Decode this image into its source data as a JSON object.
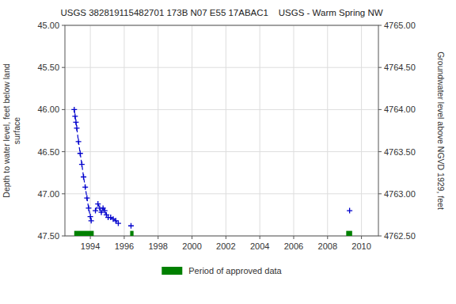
{
  "chart_data": {
    "type": "line",
    "title": "USGS 382819115482701 173B N07 E55 17ABAC1    USGS - Warm Spring NW",
    "ylabel": "Depth to water level, feet below land\nsurface",
    "y2label": "Groundwater level above NGVD 1929, feet",
    "xlim": [
      1992.5,
      2011.0
    ],
    "xticks": [
      1994,
      1996,
      1998,
      2000,
      2002,
      2004,
      2006,
      2008,
      2010
    ],
    "ylim": [
      47.5,
      45.0
    ],
    "yticks": [
      {
        "value": 45.0,
        "label": "45.00"
      },
      {
        "value": 45.5,
        "label": "45.50"
      },
      {
        "value": 46.0,
        "label": "46.00"
      },
      {
        "value": 46.5,
        "label": "46.50"
      },
      {
        "value": 47.0,
        "label": "47.00"
      },
      {
        "value": 47.5,
        "label": "47.50"
      }
    ],
    "y2lim": [
      4762.5,
      4765.0
    ],
    "y2ticks": [
      {
        "value": 4765.0,
        "label": "4765.00"
      },
      {
        "value": 4764.5,
        "label": "4764.50"
      },
      {
        "value": 4764.0,
        "label": "4764.00"
      },
      {
        "value": 4763.5,
        "label": "4763.50"
      },
      {
        "value": 4763.0,
        "label": "4763.00"
      },
      {
        "value": 4762.5,
        "label": "4762.50"
      }
    ],
    "grid": true,
    "legend": "below",
    "series": [
      {
        "color": "#0000cc",
        "marker": "plus",
        "line_style": "dashed",
        "x": [
          1993.05,
          1993.1,
          1993.15,
          1993.2,
          1993.3,
          1993.4,
          1993.5,
          1993.6,
          1993.7,
          1993.8,
          1993.9,
          1994.0,
          1994.05
        ],
        "values": [
          46.0,
          46.08,
          46.15,
          46.22,
          46.38,
          46.52,
          46.65,
          46.8,
          46.92,
          47.05,
          47.17,
          47.27,
          47.32
        ]
      },
      {
        "color": "#0000cc",
        "marker": "plus",
        "line_style": "dashed",
        "x": [
          1994.3,
          1994.45,
          1994.55,
          1994.65,
          1994.75,
          1994.85,
          1994.95,
          1995.05,
          1995.2,
          1995.35,
          1995.5,
          1995.65
        ],
        "values": [
          47.2,
          47.12,
          47.17,
          47.22,
          47.17,
          47.2,
          47.25,
          47.28,
          47.28,
          47.3,
          47.32,
          47.35
        ]
      },
      {
        "color": "#0000cc",
        "marker": "plus",
        "line_style": "none",
        "x": [
          1996.4
        ],
        "values": [
          47.38
        ]
      },
      {
        "color": "#0000cc",
        "marker": "plus",
        "line_style": "none",
        "x": [
          2009.3
        ],
        "values": [
          47.2
        ]
      }
    ],
    "approved_periods": {
      "name": "Period of approved data",
      "color": "#008000",
      "y": 47.5,
      "height": 0.06,
      "ranges": [
        [
          1993.05,
          1994.2
        ],
        [
          1996.35,
          1996.55
        ],
        [
          2009.1,
          2009.45
        ]
      ]
    }
  }
}
